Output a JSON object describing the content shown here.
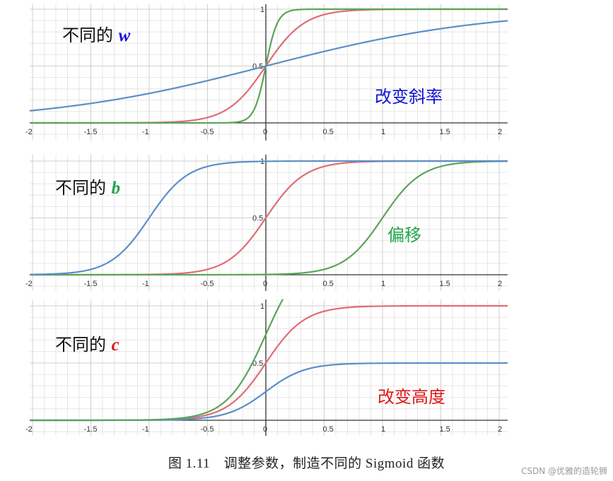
{
  "chart_data": [
    {
      "type": "line",
      "panel_label": "不同的",
      "variable": "w",
      "variable_color": "#1414d2",
      "note": "改变斜率",
      "note_color": "#1414d2",
      "xlim": [
        -2.05,
        2.05
      ],
      "ylim": [
        0,
        1
      ],
      "x_ticks": [
        "-2",
        "-1.5",
        "-1",
        "-0.5",
        "0",
        "0.5",
        "1",
        "1.5",
        "2"
      ],
      "y_ticks": [
        "0.5",
        "1"
      ],
      "grid": true,
      "series": [
        {
          "color": "#e06c75",
          "function": "c/(1+exp(-(w*x+b)))",
          "w": 6,
          "b": 0,
          "c": 1
        },
        {
          "color": "#5aa55a",
          "function": "c/(1+exp(-(w*x+b)))",
          "w": 20,
          "b": 0,
          "c": 1
        },
        {
          "color": "#5b8fc9",
          "function": "c/(1+exp(-(w*x+b)))",
          "w": 1.05,
          "b": 0,
          "c": 1
        }
      ]
    },
    {
      "type": "line",
      "panel_label": "不同的",
      "variable": "b",
      "variable_color": "#22a34a",
      "note": "偏移",
      "note_color": "#22a34a",
      "xlim": [
        -2.05,
        2.05
      ],
      "ylim": [
        0,
        1
      ],
      "x_ticks": [
        "-2",
        "-1.5",
        "-1",
        "-0.5",
        "0",
        "0.5",
        "1",
        "1.5",
        "2"
      ],
      "y_ticks": [
        "0.5",
        "1"
      ],
      "grid": true,
      "series": [
        {
          "color": "#e06c75",
          "function": "c/(1+exp(-(w*x+b)))",
          "w": 6,
          "b": 0,
          "c": 1
        },
        {
          "color": "#5aa55a",
          "function": "c/(1+exp(-(w*x+b)))",
          "w": 6,
          "b": -6,
          "c": 1
        },
        {
          "color": "#5b8fc9",
          "function": "c/(1+exp(-(w*x+b)))",
          "w": 6,
          "b": 6,
          "c": 1
        }
      ]
    },
    {
      "type": "line",
      "panel_label": "不同的",
      "variable": "c",
      "variable_color": "#e01818",
      "note": "改变高度",
      "note_color": "#e01818",
      "xlim": [
        -2.05,
        2.05
      ],
      "ylim": [
        0,
        1
      ],
      "x_ticks": [
        "-2",
        "-1.5",
        "-1",
        "-0.5",
        "0",
        "0.5",
        "1",
        "1.5",
        "2"
      ],
      "y_ticks": [
        "0.5",
        "1"
      ],
      "grid": true,
      "series": [
        {
          "color": "#e06c75",
          "function": "c/(1+exp(-(w*x+b)))",
          "w": 6,
          "b": 0,
          "c": 1
        },
        {
          "color": "#5b8fc9",
          "function": "c/(1+exp(-(w*x+b)))",
          "w": 6,
          "b": 0,
          "c": 0.5
        },
        {
          "color": "#5aa55a",
          "function": "c/(1+exp(-(w*x+b)))",
          "w": 6,
          "b": 0,
          "c": 1.5
        }
      ]
    }
  ],
  "caption": "图 1.11　调整参数，制造不同的 Sigmoid 函数",
  "watermark": "CSDN @优雅的造轮狮"
}
